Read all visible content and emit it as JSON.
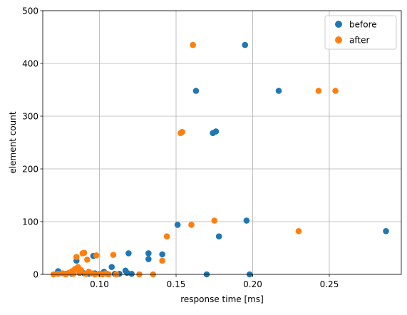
{
  "chart_data": {
    "type": "scatter",
    "title": "",
    "xlabel": "response time [ms]",
    "ylabel": "element count",
    "xlim": [
      0.063,
      0.297
    ],
    "ylim": [
      0,
      500
    ],
    "x_ticks": [
      0.1,
      0.15,
      0.2,
      0.25
    ],
    "x_tick_labels": [
      "0.10",
      "0.15",
      "0.20",
      "0.25"
    ],
    "y_ticks": [
      0,
      100,
      200,
      300,
      400,
      500
    ],
    "y_tick_labels": [
      "0",
      "100",
      "200",
      "300",
      "400",
      "500"
    ],
    "grid": true,
    "legend_position": "top-right",
    "series": [
      {
        "name": "before",
        "color": "#1f77b4",
        "points": [
          {
            "x": 0.073,
            "y": 6
          },
          {
            "x": 0.078,
            "y": 1
          },
          {
            "x": 0.082,
            "y": 1
          },
          {
            "x": 0.085,
            "y": 26
          },
          {
            "x": 0.087,
            "y": 3
          },
          {
            "x": 0.09,
            "y": 2
          },
          {
            "x": 0.093,
            "y": 1
          },
          {
            "x": 0.096,
            "y": 35
          },
          {
            "x": 0.097,
            "y": 2
          },
          {
            "x": 0.1,
            "y": 1
          },
          {
            "x": 0.103,
            "y": 5
          },
          {
            "x": 0.105,
            "y": 1
          },
          {
            "x": 0.108,
            "y": 14
          },
          {
            "x": 0.11,
            "y": 1
          },
          {
            "x": 0.113,
            "y": 1
          },
          {
            "x": 0.117,
            "y": 7
          },
          {
            "x": 0.118,
            "y": 3
          },
          {
            "x": 0.119,
            "y": 40
          },
          {
            "x": 0.121,
            "y": 1
          },
          {
            "x": 0.132,
            "y": 40
          },
          {
            "x": 0.132,
            "y": 29
          },
          {
            "x": 0.141,
            "y": 38
          },
          {
            "x": 0.151,
            "y": 94
          },
          {
            "x": 0.163,
            "y": 348
          },
          {
            "x": 0.17,
            "y": 0
          },
          {
            "x": 0.174,
            "y": 268
          },
          {
            "x": 0.176,
            "y": 271
          },
          {
            "x": 0.178,
            "y": 72
          },
          {
            "x": 0.195,
            "y": 435
          },
          {
            "x": 0.196,
            "y": 102
          },
          {
            "x": 0.198,
            "y": 0
          },
          {
            "x": 0.217,
            "y": 348
          },
          {
            "x": 0.287,
            "y": 82
          }
        ]
      },
      {
        "name": "after",
        "color": "#ff7f0e",
        "points": [
          {
            "x": 0.07,
            "y": 0
          },
          {
            "x": 0.073,
            "y": 1
          },
          {
            "x": 0.076,
            "y": 2
          },
          {
            "x": 0.078,
            "y": 0
          },
          {
            "x": 0.08,
            "y": 3
          },
          {
            "x": 0.082,
            "y": 6
          },
          {
            "x": 0.083,
            "y": 1
          },
          {
            "x": 0.084,
            "y": 10
          },
          {
            "x": 0.085,
            "y": 33
          },
          {
            "x": 0.086,
            "y": 14
          },
          {
            "x": 0.087,
            "y": 4
          },
          {
            "x": 0.088,
            "y": 8
          },
          {
            "x": 0.089,
            "y": 40
          },
          {
            "x": 0.09,
            "y": 41
          },
          {
            "x": 0.091,
            "y": 1
          },
          {
            "x": 0.092,
            "y": 28
          },
          {
            "x": 0.093,
            "y": 5
          },
          {
            "x": 0.095,
            "y": 2
          },
          {
            "x": 0.097,
            "y": 0
          },
          {
            "x": 0.098,
            "y": 36
          },
          {
            "x": 0.1,
            "y": 1
          },
          {
            "x": 0.102,
            "y": 0
          },
          {
            "x": 0.104,
            "y": 2
          },
          {
            "x": 0.106,
            "y": 0
          },
          {
            "x": 0.109,
            "y": 37
          },
          {
            "x": 0.111,
            "y": 0
          },
          {
            "x": 0.126,
            "y": 0
          },
          {
            "x": 0.135,
            "y": 0
          },
          {
            "x": 0.141,
            "y": 26
          },
          {
            "x": 0.144,
            "y": 72
          },
          {
            "x": 0.153,
            "y": 268
          },
          {
            "x": 0.154,
            "y": 270
          },
          {
            "x": 0.16,
            "y": 94
          },
          {
            "x": 0.161,
            "y": 435
          },
          {
            "x": 0.175,
            "y": 102
          },
          {
            "x": 0.23,
            "y": 82
          },
          {
            "x": 0.243,
            "y": 348
          },
          {
            "x": 0.254,
            "y": 348
          }
        ]
      }
    ]
  }
}
